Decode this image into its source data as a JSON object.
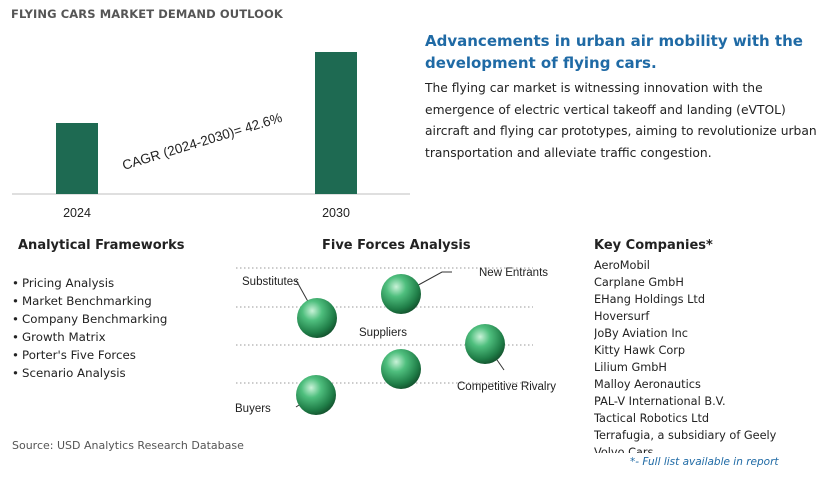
{
  "page_title": "FLYING CARS MARKET DEMAND OUTLOOK",
  "chart_data": {
    "type": "bar",
    "categories": [
      "2024",
      "2030"
    ],
    "values": [
      1,
      2
    ],
    "annotation": "CAGR (2024-2030)=    42.6%",
    "bar_color": "#1e6a52",
    "grid": false
  },
  "headline": "Advancements in urban air mobility with the development of flying cars.",
  "description": "The flying car market is witnessing innovation with the emergence of electric vertical takeoff and landing (eVTOL) aircraft and flying car prototypes, aiming to revolutionize urban transportation and alleviate traffic congestion.",
  "analytical_frameworks": {
    "heading": "Analytical Frameworks",
    "items": [
      "Pricing Analysis",
      "Market Benchmarking",
      "Company Benchmarking",
      "Growth Matrix",
      "Porter's Five Forces",
      "Scenario Analysis"
    ]
  },
  "five_forces": {
    "heading": "Five Forces Analysis",
    "labels": {
      "substitutes": "Substitutes",
      "new_entrants": "New Entrants",
      "suppliers": "Suppliers",
      "competitive_rivalry": "Competitive Rivalry",
      "buyers": "Buyers"
    },
    "sphere_color": "#2e9a5a"
  },
  "key_companies": {
    "heading": "Key Companies*",
    "items": [
      "AeroMobil",
      "Carplane GmbH",
      "EHang Holdings Ltd",
      "Hoversurf",
      "JoBy Aviation Inc",
      "Kitty Hawk Corp",
      "Lilium GmbH",
      "Malloy Aeronautics",
      "PAL-V International B.V.",
      "Tactical Robotics Ltd",
      "Terrafugia, a subsidiary of Geely",
      "Volvo Cars"
    ],
    "footnote": "*- Full list available in report"
  },
  "source": "Source: USD Analytics Research Database"
}
